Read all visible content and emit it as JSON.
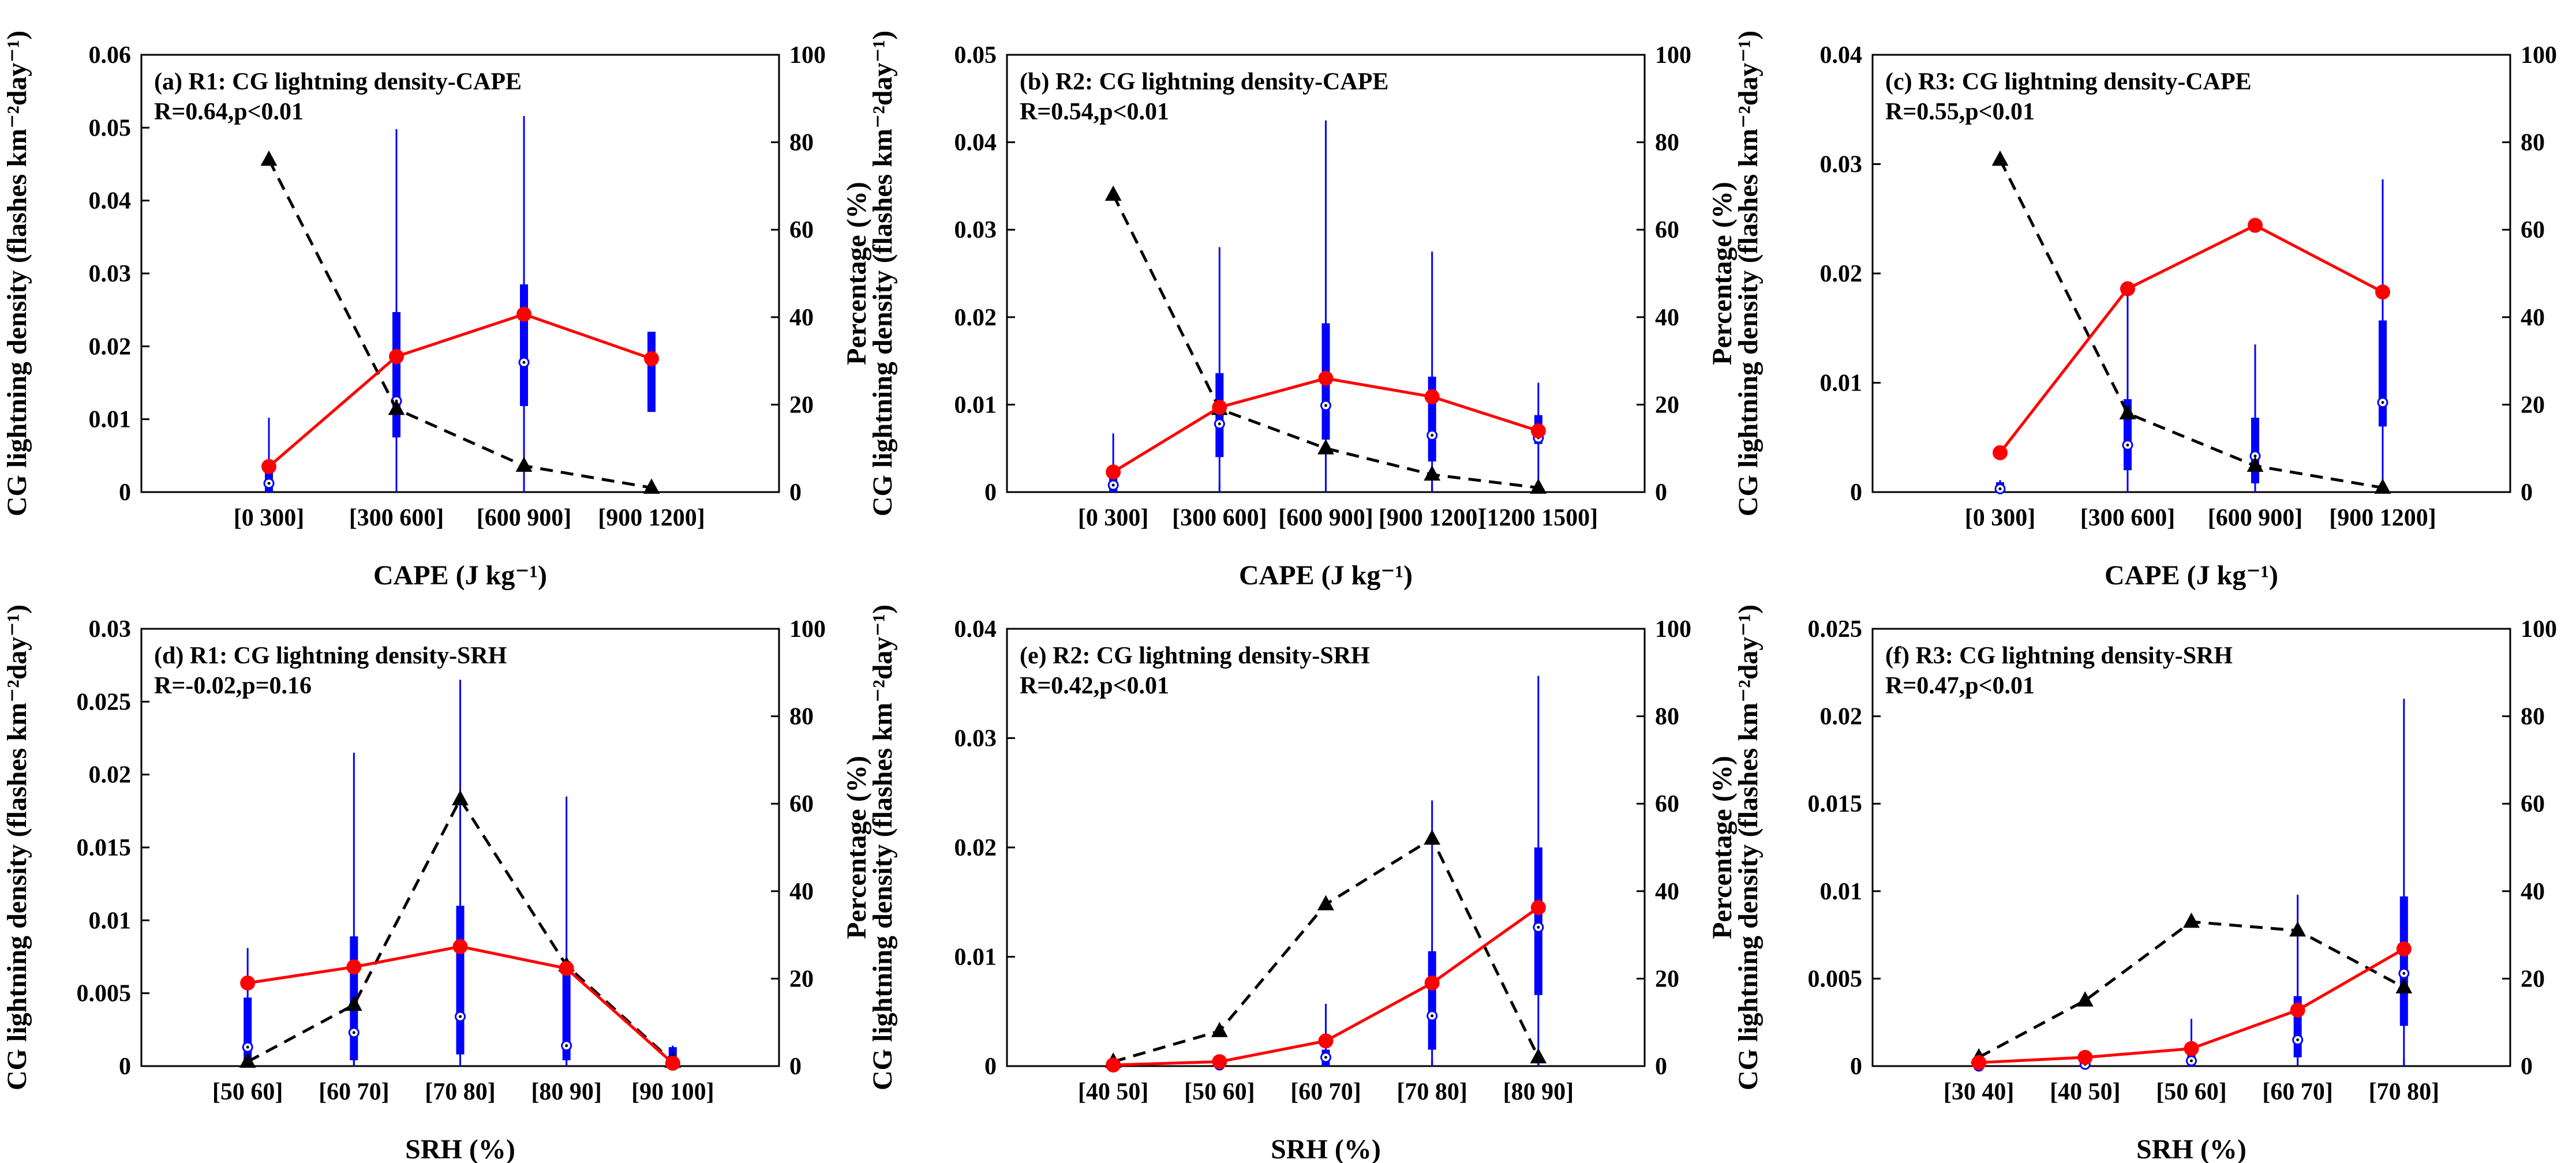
{
  "figure": {
    "y_label_left": "CG lightning density (flashes km⁻²day⁻¹)",
    "y_label_right": "Percentage (%)",
    "right_axis_ticks": [
      "0",
      "20",
      "40",
      "60",
      "80",
      "100"
    ],
    "colors": {
      "mean_line": "#ff0000",
      "box": "#0000ff",
      "percentage_line": "#000000"
    }
  },
  "chart_data": [
    {
      "type": "line+box",
      "title": "(a) R1: CG lightning density-CAPE",
      "stats": "R=0.64,p<0.01",
      "xlabel": "CAPE (J kg⁻¹)",
      "categories": [
        "[0 300]",
        "[300 600]",
        "[600 900]",
        "[900 1200]"
      ],
      "ylim": [
        0,
        0.06
      ],
      "yticks": [
        "0",
        "0.01",
        "0.02",
        "0.03",
        "0.04",
        "0.05",
        "0.06"
      ],
      "y2lim": [
        0,
        100
      ],
      "mean": [
        0.0035,
        0.0186,
        0.0244,
        0.0183
      ],
      "percentage": [
        76,
        19,
        6,
        1
      ],
      "box": [
        {
          "whisker_low": 0,
          "q1": 0,
          "median": 0.0012,
          "q3": 0.003,
          "whisker_high": 0.0102
        },
        {
          "whisker_low": 0,
          "q1": 0.0075,
          "median": 0.0125,
          "q3": 0.0247,
          "whisker_high": 0.0498
        },
        {
          "whisker_low": 0,
          "q1": 0.0118,
          "median": 0.0178,
          "q3": 0.0285,
          "whisker_high": 0.0516
        },
        {
          "whisker_low": 0.011,
          "q1": 0.011,
          "median": 0.018,
          "q3": 0.022,
          "whisker_high": 0.022
        }
      ]
    },
    {
      "type": "line+box",
      "title": "(b) R2: CG lightning density-CAPE",
      "stats": "R=0.54,p<0.01",
      "xlabel": "CAPE (J kg⁻¹)",
      "categories": [
        "[0 300]",
        "[300 600]",
        "[600 900]",
        "[900 1200]",
        "[1200 1500]"
      ],
      "ylim": [
        0,
        0.05
      ],
      "yticks": [
        "0",
        "0.01",
        "0.02",
        "0.03",
        "0.04",
        "0.05"
      ],
      "y2lim": [
        0,
        100
      ],
      "mean": [
        0.0023,
        0.0097,
        0.013,
        0.0109,
        0.007
      ],
      "percentage": [
        68,
        19,
        10,
        4,
        1
      ],
      "box": [
        {
          "whisker_low": 0,
          "q1": 0,
          "median": 0.0008,
          "q3": 0.0018,
          "whisker_high": 0.0067
        },
        {
          "whisker_low": 0,
          "q1": 0.004,
          "median": 0.0078,
          "q3": 0.0136,
          "whisker_high": 0.028
        },
        {
          "whisker_low": 0,
          "q1": 0.006,
          "median": 0.0099,
          "q3": 0.0193,
          "whisker_high": 0.0425
        },
        {
          "whisker_low": 0,
          "q1": 0.0035,
          "median": 0.0065,
          "q3": 0.0132,
          "whisker_high": 0.0275
        },
        {
          "whisker_low": 0,
          "q1": 0.0055,
          "median": 0.0062,
          "q3": 0.0088,
          "whisker_high": 0.0125
        }
      ]
    },
    {
      "type": "line+box",
      "title": "(c) R3: CG lightning density-CAPE",
      "stats": "R=0.55,p<0.01",
      "xlabel": "CAPE (J kg⁻¹)",
      "categories": [
        "[0 300]",
        "[300 600]",
        "[600 900]",
        "[900 1200]"
      ],
      "ylim": [
        0,
        0.04
      ],
      "yticks": [
        "0",
        "0.01",
        "0.02",
        "0.03",
        "0.04"
      ],
      "y2lim": [
        0,
        100
      ],
      "mean": [
        0.0036,
        0.0186,
        0.0244,
        0.0183
      ],
      "percentage": [
        76,
        18,
        6,
        1
      ],
      "box": [
        {
          "whisker_low": 0,
          "q1": 0,
          "median": 0.0003,
          "q3": 0.0009,
          "whisker_high": 0.0011
        },
        {
          "whisker_low": 0,
          "q1": 0.002,
          "median": 0.0043,
          "q3": 0.0085,
          "whisker_high": 0.018
        },
        {
          "whisker_low": 0,
          "q1": 0.0008,
          "median": 0.0033,
          "q3": 0.0068,
          "whisker_high": 0.0135
        },
        {
          "whisker_low": 0,
          "q1": 0.006,
          "median": 0.0082,
          "q3": 0.0157,
          "whisker_high": 0.0286
        }
      ]
    },
    {
      "type": "line+box",
      "title": "(d) R1: CG lightning density-SRH",
      "stats": "R=-0.02,p=0.16",
      "xlabel": "SRH (%)",
      "categories": [
        "[50 60]",
        "[60 70]",
        "[70 80]",
        "[80 90]",
        "[90 100]"
      ],
      "ylim": [
        0,
        0.03
      ],
      "yticks": [
        "0",
        "0.005",
        "0.01",
        "0.015",
        "0.02",
        "0.025",
        "0.03"
      ],
      "y2lim": [
        0,
        100
      ],
      "mean": [
        0.0057,
        0.0068,
        0.0082,
        0.0067,
        0.0002
      ],
      "percentage": [
        1,
        14,
        61,
        23,
        1
      ],
      "box": [
        {
          "whisker_low": 0,
          "q1": 0.0004,
          "median": 0.0013,
          "q3": 0.0047,
          "whisker_high": 0.0081
        },
        {
          "whisker_low": 0,
          "q1": 0.0004,
          "median": 0.0023,
          "q3": 0.0089,
          "whisker_high": 0.0215
        },
        {
          "whisker_low": 0,
          "q1": 0.0008,
          "median": 0.0034,
          "q3": 0.011,
          "whisker_high": 0.0265
        },
        {
          "whisker_low": 0,
          "q1": 0.0004,
          "median": 0.0014,
          "q3": 0.0072,
          "whisker_high": 0.0185
        },
        {
          "whisker_low": 0,
          "q1": 0,
          "median": 0.0002,
          "q3": 0.0013,
          "whisker_high": 0.0014
        }
      ]
    },
    {
      "type": "line+box",
      "title": "(e) R2: CG lightning density-SRH",
      "stats": "R=0.42,p<0.01",
      "xlabel": "SRH (%)",
      "categories": [
        "[40 50]",
        "[50 60]",
        "[60 70]",
        "[70 80]",
        "[80 90]"
      ],
      "ylim": [
        0,
        0.04
      ],
      "yticks": [
        "0",
        "0.01",
        "0.02",
        "0.03",
        "0.04"
      ],
      "y2lim": [
        0,
        100
      ],
      "mean": [
        0.0001,
        0.0004,
        0.0023,
        0.0076,
        0.0145
      ],
      "percentage": [
        1,
        8,
        37,
        52,
        2
      ],
      "box": [
        {
          "whisker_low": 0,
          "q1": 0,
          "median": 0,
          "q3": 0.0001,
          "whisker_high": 0.0002
        },
        {
          "whisker_low": 0,
          "q1": 0,
          "median": 0.0001,
          "q3": 0.0002,
          "whisker_high": 0.0004
        },
        {
          "whisker_low": 0,
          "q1": 0,
          "median": 0.0008,
          "q3": 0.0015,
          "whisker_high": 0.0057
        },
        {
          "whisker_low": 0,
          "q1": 0.0015,
          "median": 0.0046,
          "q3": 0.0105,
          "whisker_high": 0.0243
        },
        {
          "whisker_low": 0,
          "q1": 0.0065,
          "median": 0.0127,
          "q3": 0.02,
          "whisker_high": 0.0357
        }
      ]
    },
    {
      "type": "line+box",
      "title": "(f) R3: CG lightning density-SRH",
      "stats": "R=0.47,p<0.01",
      "xlabel": "SRH (%)",
      "categories": [
        "[30 40]",
        "[40 50]",
        "[50 60]",
        "[60 70]",
        "[70 80]"
      ],
      "ylim": [
        0,
        0.025
      ],
      "yticks": [
        "0",
        "0.005",
        "0.01",
        "0.015",
        "0.02",
        "0.025"
      ],
      "y2lim": [
        0,
        100
      ],
      "mean": [
        0.0002,
        0.0005,
        0.001,
        0.0032,
        0.0067
      ],
      "percentage": [
        2,
        15,
        33,
        31,
        18
      ],
      "box": [
        {
          "whisker_low": 0,
          "q1": 0,
          "median": 0,
          "q3": 0.0001,
          "whisker_high": 0.0002
        },
        {
          "whisker_low": 0,
          "q1": 0,
          "median": 0.0001,
          "q3": 0.0003,
          "whisker_high": 0.0005
        },
        {
          "whisker_low": 0,
          "q1": 0,
          "median": 0.0003,
          "q3": 0.0008,
          "whisker_high": 0.0027
        },
        {
          "whisker_low": 0,
          "q1": 0.0005,
          "median": 0.0015,
          "q3": 0.004,
          "whisker_high": 0.0098
        },
        {
          "whisker_low": 0,
          "q1": 0.0023,
          "median": 0.0053,
          "q3": 0.0097,
          "whisker_high": 0.021
        }
      ]
    }
  ]
}
